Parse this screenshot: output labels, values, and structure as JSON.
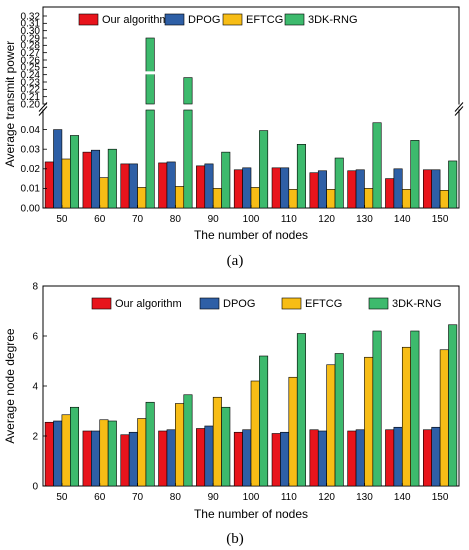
{
  "colors": {
    "Our algorithm": "#e8141c",
    "DPOG": "#2e5fa6",
    "EFTCG": "#f7bd16",
    "3DK-RNG": "#3dba6d"
  },
  "chart_data": [
    {
      "type": "bar",
      "panel_label": "(a)",
      "xlabel": "The number of nodes",
      "ylabel": "Average transmit power",
      "categories": [
        "50",
        "60",
        "70",
        "80",
        "90",
        "100",
        "110",
        "120",
        "130",
        "140",
        "150"
      ],
      "ylim_lower": [
        0,
        0.05
      ],
      "ylim_upper": [
        0.2,
        0.32
      ],
      "broken_axis": true,
      "yticks_lower": [
        "0.00",
        "0.01",
        "0.02",
        "0.03",
        "0.04"
      ],
      "yticks_upper": [
        "0.20",
        "0.21",
        "0.22",
        "0.23",
        "0.24",
        "0.25",
        "0.26",
        "0.27",
        "0.28",
        "0.29",
        "0.30",
        "0.31",
        "0.32"
      ],
      "legend_position": "top",
      "series": [
        {
          "name": "Our algorithm",
          "values": [
            0.0235,
            0.0285,
            0.0225,
            0.023,
            0.0215,
            0.0195,
            0.0205,
            0.018,
            0.019,
            0.015,
            0.0195
          ]
        },
        {
          "name": "DPOG",
          "values": [
            0.04,
            0.0295,
            0.0225,
            0.0235,
            0.0225,
            0.0205,
            0.0205,
            0.019,
            0.0195,
            0.02,
            0.0195
          ]
        },
        {
          "name": "EFTCG",
          "values": [
            0.025,
            0.0155,
            0.0105,
            0.011,
            0.01,
            0.0105,
            0.0095,
            0.0095,
            0.01,
            0.0095,
            0.009
          ]
        },
        {
          "name": "3DK-RNG",
          "values": [
            0.037,
            0.03,
            0.29,
            0.236,
            0.0285,
            0.0395,
            0.0325,
            0.0255,
            0.0435,
            0.0345,
            0.024
          ]
        }
      ]
    },
    {
      "type": "bar",
      "panel_label": "(b)",
      "xlabel": "The number of nodes",
      "ylabel": "Average node degree",
      "categories": [
        "50",
        "60",
        "70",
        "80",
        "90",
        "100",
        "110",
        "120",
        "130",
        "140",
        "150"
      ],
      "ylim": [
        0,
        8
      ],
      "yticks": [
        "0",
        "2",
        "4",
        "6",
        "8"
      ],
      "legend_position": "top",
      "series": [
        {
          "name": "Our algorithm",
          "values": [
            2.55,
            2.2,
            2.05,
            2.2,
            2.3,
            2.15,
            2.1,
            2.25,
            2.2,
            2.25,
            2.25
          ]
        },
        {
          "name": "DPOG",
          "values": [
            2.6,
            2.2,
            2.15,
            2.25,
            2.4,
            2.25,
            2.15,
            2.2,
            2.25,
            2.35,
            2.35
          ]
        },
        {
          "name": "EFTCG",
          "values": [
            2.85,
            2.65,
            2.7,
            3.3,
            3.55,
            4.2,
            4.35,
            4.85,
            5.15,
            5.55,
            5.45
          ]
        },
        {
          "name": "3DK-RNG",
          "values": [
            3.15,
            2.6,
            3.35,
            3.65,
            3.15,
            5.2,
            6.1,
            5.3,
            6.2,
            6.2,
            6.45
          ]
        }
      ]
    }
  ]
}
